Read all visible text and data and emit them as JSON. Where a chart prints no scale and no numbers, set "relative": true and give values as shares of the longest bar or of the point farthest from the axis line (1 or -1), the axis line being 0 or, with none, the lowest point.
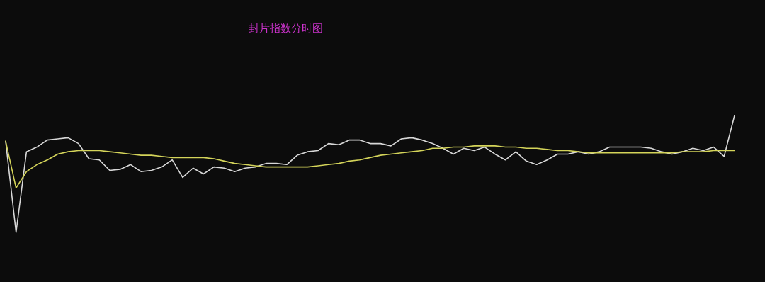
{
  "chart_data": {
    "type": "line",
    "title": "封片指数分时图",
    "relative": true,
    "categories": [
      null,
      null,
      null,
      null,
      null,
      null,
      null,
      null,
      null,
      null,
      null,
      null,
      null,
      null,
      null,
      null,
      null,
      null,
      null,
      null,
      null,
      null,
      null,
      null,
      null,
      null,
      null,
      null,
      null,
      null,
      null,
      null,
      null,
      null,
      null,
      null,
      null,
      null,
      null,
      null,
      null,
      null,
      null,
      null,
      null,
      null,
      null,
      null,
      null,
      null,
      null,
      null,
      null,
      null,
      null,
      null,
      null,
      null,
      null,
      null,
      null,
      null,
      null,
      null,
      null,
      null,
      null,
      null,
      null,
      null,
      null
    ],
    "series": [
      {
        "color": "#d8d8d8",
        "values": [
          0.78,
          0,
          0.69,
          0.73,
          0.79,
          0.8,
          0.81,
          0.76,
          0.63,
          0.62,
          0.53,
          0.54,
          0.58,
          0.52,
          0.53,
          0.56,
          0.62,
          0.47,
          0.55,
          0.5,
          0.56,
          0.55,
          0.52,
          0.55,
          0.56,
          0.59,
          0.59,
          0.58,
          0.66,
          0.69,
          0.7,
          0.76,
          0.75,
          0.79,
          0.79,
          0.76,
          0.76,
          0.74,
          0.8,
          0.81,
          0.79,
          0.76,
          0.72,
          0.67,
          0.72,
          0.7,
          0.73,
          0.67,
          0.62,
          0.69,
          0.61,
          0.58,
          0.62,
          0.67,
          0.67,
          0.69,
          0.67,
          0.69,
          0.73,
          0.73,
          0.73,
          0.73,
          0.72,
          0.69,
          0.67,
          0.69,
          0.72,
          0.7,
          0.73,
          0.65,
          1
        ]
      },
      {
        "color": "#d4d45a",
        "values": [
          0.78,
          0.38,
          0.52,
          0.58,
          0.62,
          0.67,
          0.69,
          0.7,
          0.7,
          0.7,
          0.69,
          0.68,
          0.67,
          0.66,
          0.66,
          0.65,
          0.64,
          0.64,
          0.64,
          0.64,
          0.63,
          0.61,
          0.59,
          0.58,
          0.57,
          0.56,
          0.56,
          0.56,
          0.56,
          0.56,
          0.57,
          0.58,
          0.59,
          0.61,
          0.62,
          0.64,
          0.66,
          0.67,
          0.68,
          0.69,
          0.7,
          0.72,
          0.72,
          0.73,
          0.73,
          0.74,
          0.74,
          0.74,
          0.73,
          0.73,
          0.72,
          0.72,
          0.71,
          0.7,
          0.7,
          0.69,
          0.68,
          0.68,
          0.68,
          0.68,
          0.68,
          0.68,
          0.68,
          0.68,
          0.68,
          0.69,
          0.69,
          0.69,
          0.7,
          0.7,
          0.7
        ]
      }
    ]
  }
}
